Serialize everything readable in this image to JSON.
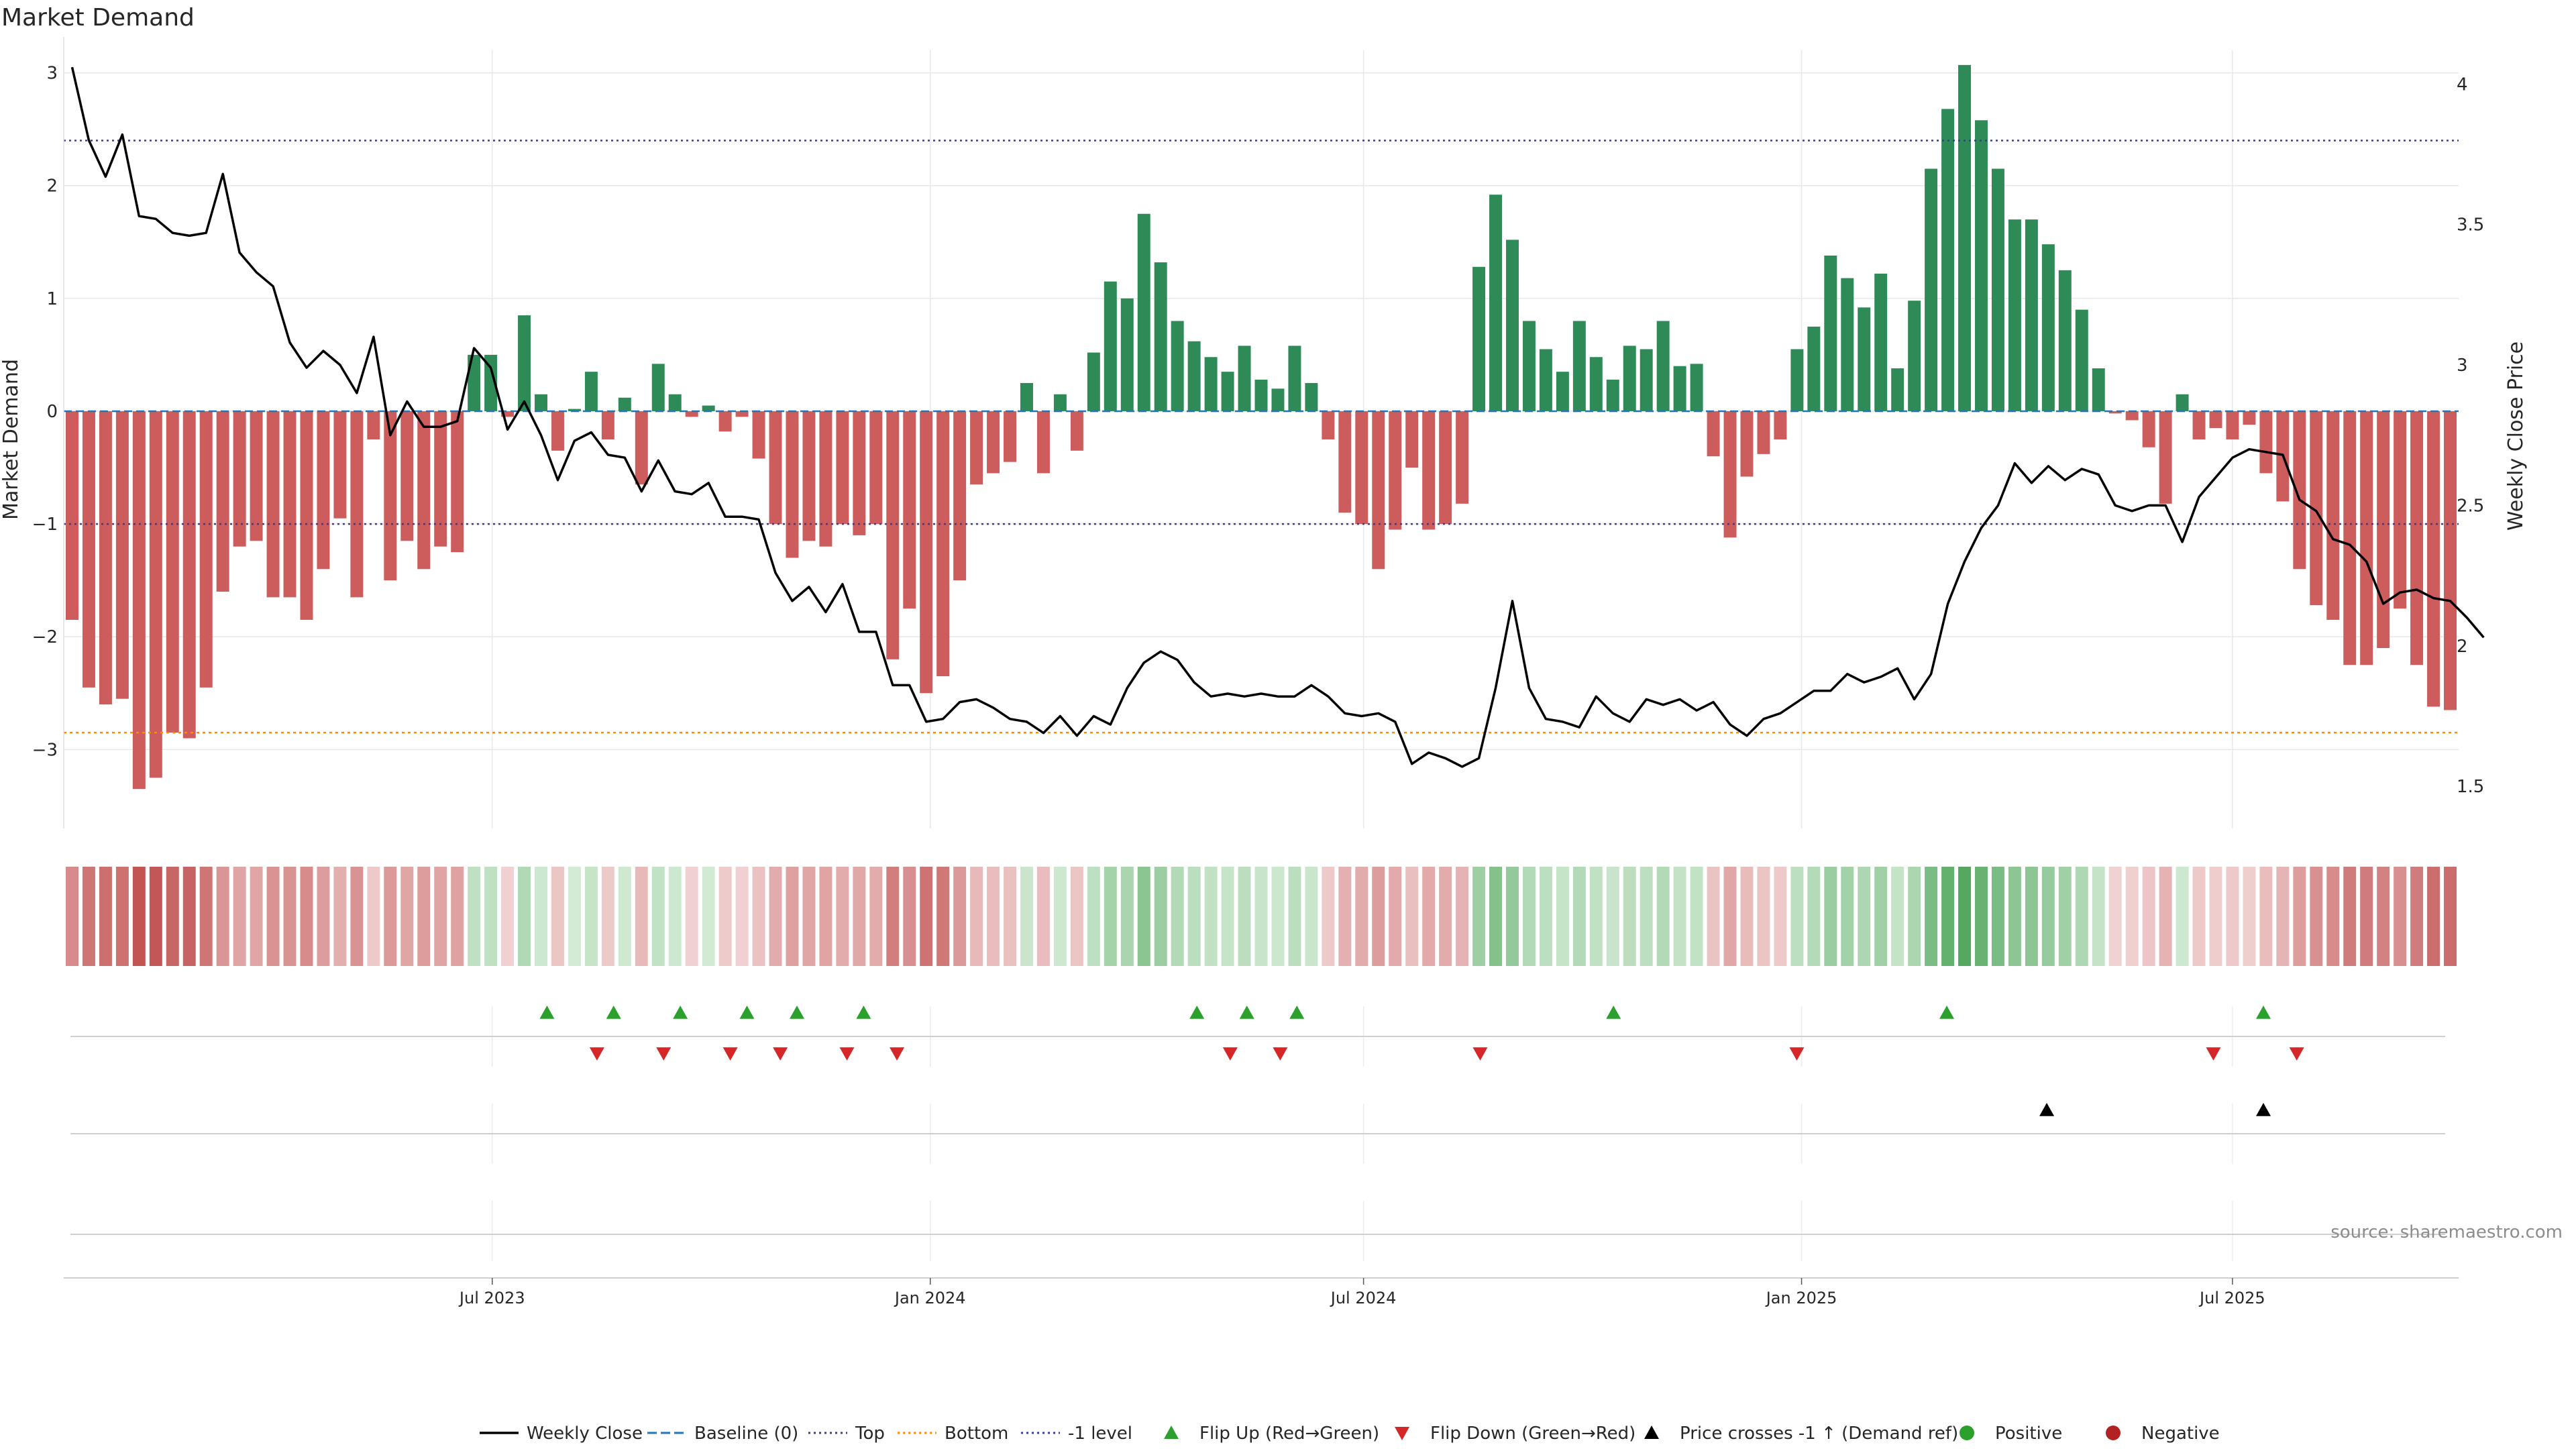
{
  "title": "Market Demand",
  "source": "source: sharemaestro.com",
  "colors": {
    "positive_bar": "#2e8b57",
    "negative_bar": "#cd5c5c",
    "price_line": "#000000",
    "baseline": "#1f77b4",
    "top_line": "#3b3b8f",
    "bottom_line": "#ff8c00",
    "minus1_line": "#3b3b8f",
    "flip_up": "#2ca02c",
    "flip_down": "#d62728",
    "positive_dot": "#2ca02c",
    "negative_dot": "#b22222",
    "grid": "#e8e8e8"
  },
  "chart_data": {
    "type": "bar",
    "title": "Market Demand",
    "ylabel_left": "Market Demand",
    "ylabel_right": "Weekly Close Price",
    "ylim_left": [
      -3.7,
      3.2
    ],
    "ylim_right": [
      1.35,
      4.12
    ],
    "yticks_left": [
      -3,
      -2,
      -1,
      0,
      1,
      2,
      3
    ],
    "yticks_right": [
      1.5,
      2,
      2.5,
      3,
      3.5,
      4
    ],
    "ytick_labels_left": [
      "−3",
      "−2",
      "−1",
      "0",
      "1",
      "2",
      "3"
    ],
    "ytick_labels_right": [
      "1.5",
      "2",
      "2.5",
      "3",
      "3.5",
      "4"
    ],
    "x_start": "2023-01-02",
    "x_end": "2025-10-04",
    "xticks": [
      {
        "label": "Jul 2023",
        "date": "2023-07-01"
      },
      {
        "label": "Jan 2024",
        "date": "2024-01-01"
      },
      {
        "label": "Jul 2024",
        "date": "2024-07-01"
      },
      {
        "label": "Jan 2025",
        "date": "2025-01-01"
      },
      {
        "label": "Jul 2025",
        "date": "2025-07-01"
      }
    ],
    "reference_lines": {
      "baseline": 0,
      "top": 2.4,
      "bottom": -2.85,
      "minus1": -1
    },
    "demand": [
      -1.85,
      -2.45,
      -2.6,
      -2.55,
      -3.35,
      -3.25,
      -2.85,
      -2.9,
      -2.45,
      -1.6,
      -1.2,
      -1.15,
      -1.65,
      -1.65,
      -1.85,
      -1.4,
      -0.95,
      -1.65,
      -0.25,
      -1.5,
      -1.15,
      -1.4,
      -1.2,
      -1.25,
      0.5,
      0.5,
      -0.05,
      0.85,
      0.15,
      -0.35,
      0.02,
      0.35,
      -0.25,
      0.12,
      -0.65,
      0.42,
      0.15,
      -0.05,
      0.05,
      -0.18,
      -0.05,
      -0.42,
      -1.0,
      -1.3,
      -1.15,
      -1.2,
      -1.0,
      -1.1,
      -1.0,
      -2.2,
      -1.75,
      -2.5,
      -2.35,
      -1.5,
      -0.65,
      -0.55,
      -0.45,
      0.25,
      -0.55,
      0.15,
      -0.35,
      0.52,
      1.15,
      1.0,
      1.75,
      1.32,
      0.8,
      0.62,
      0.48,
      0.35,
      0.58,
      0.28,
      0.2,
      0.58,
      0.25,
      -0.25,
      -0.9,
      -1.0,
      -1.4,
      -1.05,
      -0.5,
      -1.05,
      -1.0,
      -0.82,
      1.28,
      1.92,
      1.52,
      0.8,
      0.55,
      0.35,
      0.8,
      0.48,
      0.28,
      0.58,
      0.55,
      0.8,
      0.4,
      0.42,
      -0.4,
      -1.12,
      -0.58,
      -0.38,
      -0.25,
      0.55,
      0.75,
      1.38,
      1.18,
      0.92,
      1.22,
      0.38,
      0.98,
      2.15,
      2.68,
      3.07,
      2.58,
      2.15,
      1.7,
      1.7,
      1.48,
      1.25,
      0.9,
      0.38,
      -0.02,
      -0.08,
      -0.32,
      -0.82,
      0.15,
      -0.25,
      -0.15,
      -0.25,
      -0.12,
      -0.55,
      -0.8,
      -1.4,
      -1.72,
      -1.85,
      -2.25,
      -2.25,
      -2.1,
      -1.75,
      -2.25,
      -2.62,
      -2.65
    ],
    "price": [
      4.06,
      3.8,
      3.67,
      3.82,
      3.53,
      3.52,
      3.47,
      3.46,
      3.47,
      3.68,
      3.4,
      3.33,
      3.28,
      3.08,
      2.99,
      3.05,
      3.0,
      2.9,
      3.1,
      2.75,
      2.87,
      2.78,
      2.78,
      2.8,
      3.06,
      2.99,
      2.77,
      2.87,
      2.75,
      2.59,
      2.73,
      2.76,
      2.68,
      2.67,
      2.55,
      2.66,
      2.55,
      2.54,
      2.58,
      2.46,
      2.46,
      2.45,
      2.26,
      2.16,
      2.21,
      2.12,
      2.22,
      2.05,
      2.05,
      1.86,
      1.86,
      1.73,
      1.74,
      1.8,
      1.81,
      1.78,
      1.74,
      1.73,
      1.69,
      1.75,
      1.68,
      1.75,
      1.72,
      1.85,
      1.94,
      1.98,
      1.95,
      1.87,
      1.82,
      1.83,
      1.82,
      1.83,
      1.82,
      1.82,
      1.86,
      1.82,
      1.76,
      1.75,
      1.76,
      1.73,
      1.58,
      1.62,
      1.6,
      1.57,
      1.6,
      1.85,
      2.16,
      1.85,
      1.74,
      1.73,
      1.71,
      1.82,
      1.76,
      1.73,
      1.81,
      1.79,
      1.81,
      1.77,
      1.8,
      1.72,
      1.68,
      1.74,
      1.76,
      1.8,
      1.84,
      1.84,
      1.9,
      1.87,
      1.89,
      1.92,
      1.81,
      1.9,
      2.15,
      2.3,
      2.42,
      2.5,
      2.65,
      2.58,
      2.64,
      2.59,
      2.63,
      2.61,
      2.5,
      2.48,
      2.5,
      2.5,
      2.37,
      2.53,
      2.6,
      2.67,
      2.7,
      2.69,
      2.68,
      2.52,
      2.48,
      2.38,
      2.36,
      2.3,
      2.15,
      2.19,
      2.2,
      2.17,
      2.16,
      2.1,
      2.03
    ],
    "flip_up_dates": [
      "2023-07-24",
      "2023-08-21",
      "2023-09-18",
      "2023-10-16",
      "2023-11-06",
      "2023-12-04",
      "2024-04-22",
      "2024-05-13",
      "2024-06-03",
      "2024-10-14",
      "2025-03-03",
      "2025-07-14"
    ],
    "flip_down_dates": [
      "2023-08-14",
      "2023-09-11",
      "2023-10-09",
      "2023-10-30",
      "2023-11-27",
      "2023-12-18",
      "2024-05-06",
      "2024-05-27",
      "2024-08-19",
      "2024-12-30",
      "2025-06-23",
      "2025-07-28"
    ],
    "price_cross_dates": [
      "2025-04-14",
      "2025-07-14"
    ],
    "legend": [
      {
        "label": "Weekly Close",
        "kind": "line",
        "color": "#000000"
      },
      {
        "label": "Baseline (0)",
        "kind": "dashed",
        "color": "#1f77b4"
      },
      {
        "label": "Top",
        "kind": "dotted",
        "color": "#3b3b8f"
      },
      {
        "label": "Bottom",
        "kind": "dotted",
        "color": "#ff8c00"
      },
      {
        "label": "-1 level",
        "kind": "dotted",
        "color": "#3b3b8f"
      },
      {
        "label": "Flip Up (Red→Green)",
        "kind": "triangle-up",
        "color": "#2ca02c"
      },
      {
        "label": "Flip Down (Green→Red)",
        "kind": "triangle-down",
        "color": "#d62728"
      },
      {
        "label": "Price crosses -1 ↑ (Demand ref)",
        "kind": "triangle-up",
        "color": "#000000"
      },
      {
        "label": "Positive",
        "kind": "dot",
        "color": "#2ca02c"
      },
      {
        "label": "Negative",
        "kind": "dot",
        "color": "#b22222"
      }
    ]
  }
}
